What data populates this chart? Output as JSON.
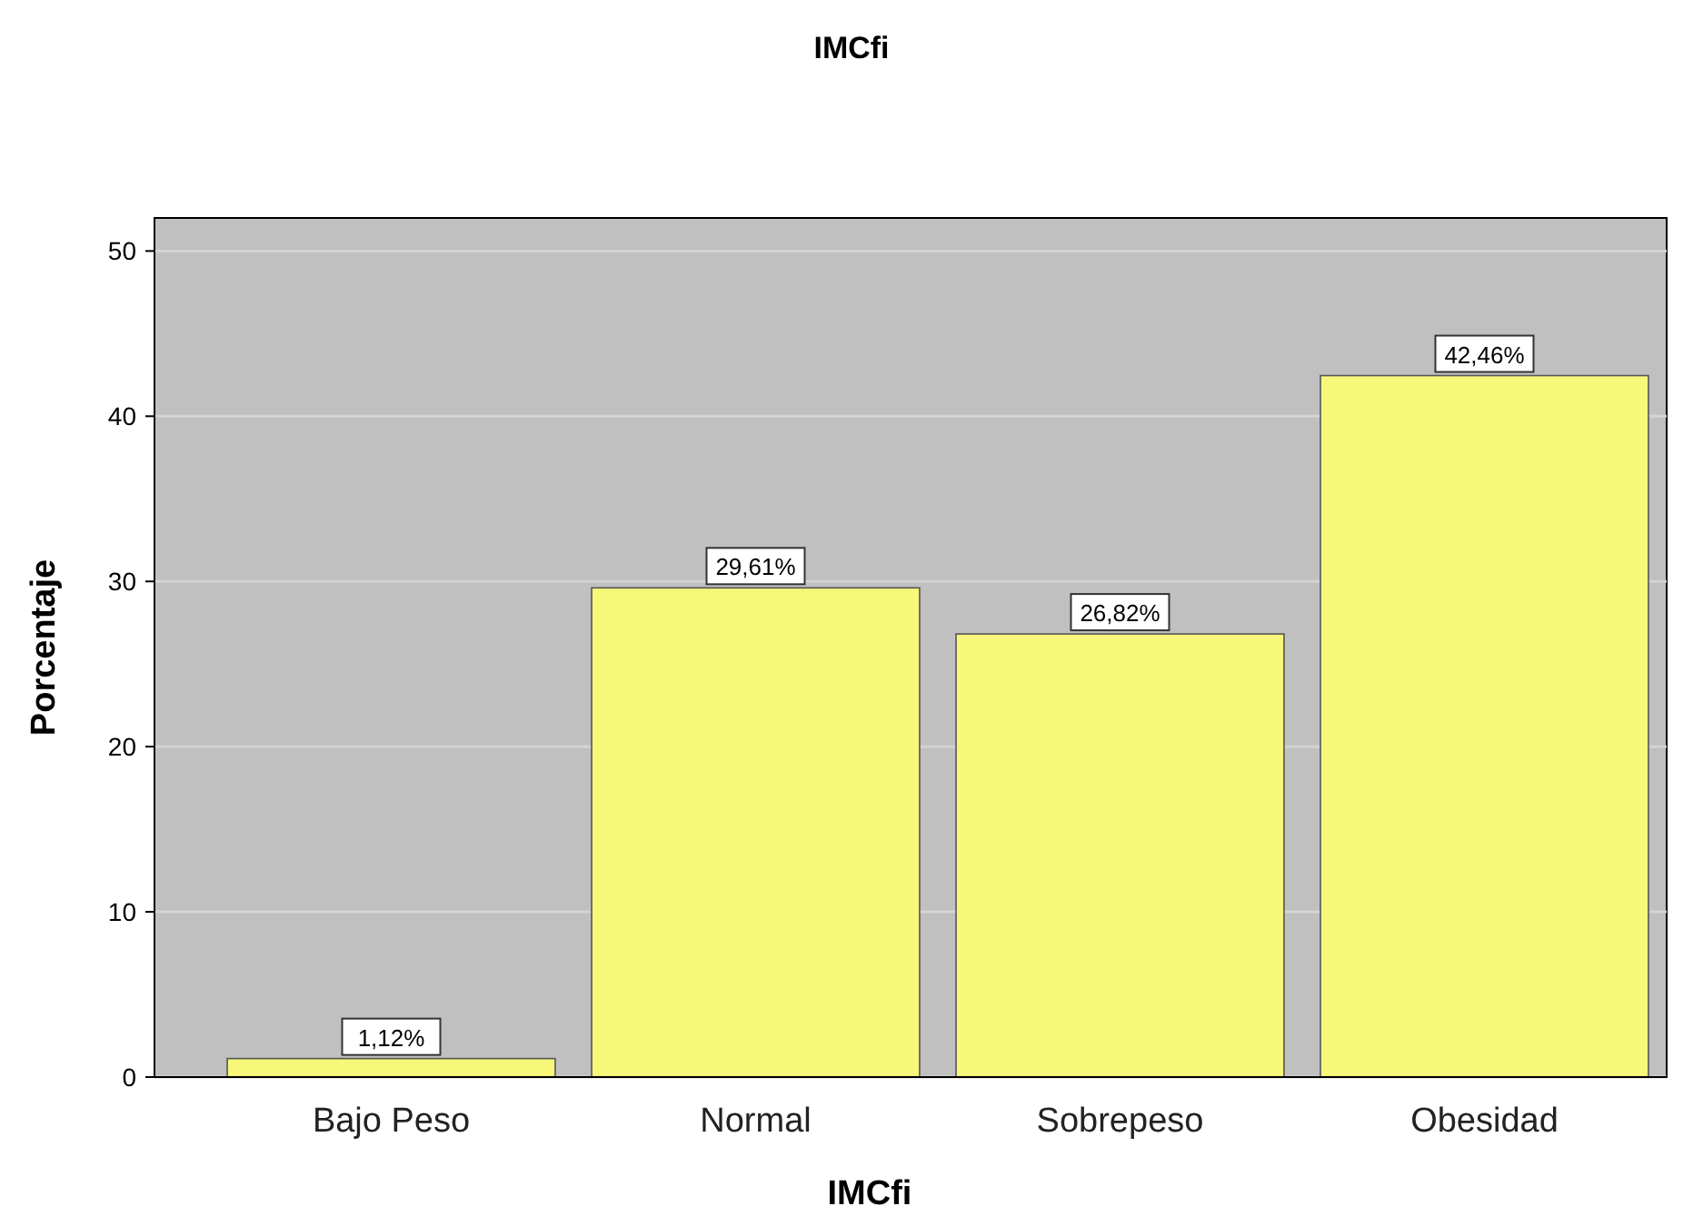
{
  "chart_data": {
    "type": "bar",
    "title": "IMCfi",
    "xlabel": "IMCfi",
    "ylabel": "Porcentaje",
    "categories": [
      "Bajo Peso",
      "Normal",
      "Sobrepeso",
      "Obesidad"
    ],
    "values": [
      1.12,
      29.61,
      26.82,
      42.46
    ],
    "value_labels": [
      "1,12%",
      "29,61%",
      "26,82%",
      "42,46%"
    ],
    "color": "#f7f77a",
    "ylim": [
      0,
      52
    ],
    "yticks": [
      0,
      10,
      20,
      30,
      40,
      50
    ],
    "grid": "y"
  }
}
